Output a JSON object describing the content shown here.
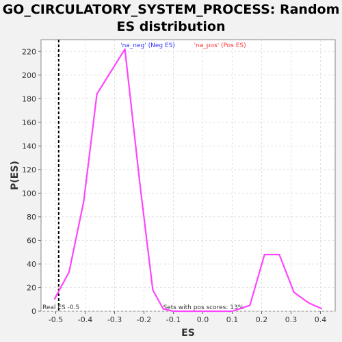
{
  "chart_data": {
    "type": "line",
    "title_lines": [
      "GO_CIRCULATORY_SYSTEM_PROCESS: Random",
      "ES distribution"
    ],
    "xlabel": "ES",
    "ylabel": "P(ES)",
    "xlim": [
      -0.55,
      0.45
    ],
    "ylim": [
      0,
      230
    ],
    "xticks": [
      -0.5,
      -0.4,
      -0.3,
      -0.2,
      -0.1,
      0.0,
      0.1,
      0.2,
      0.3,
      0.4
    ],
    "xtick_labels": [
      "-0.5",
      "-0.4",
      "-0.3",
      "-0.2",
      "-0.1",
      "0.0",
      "0.1",
      "0.2",
      "0.3",
      "0.4"
    ],
    "yticks": [
      0,
      20,
      40,
      60,
      80,
      100,
      120,
      140,
      160,
      180,
      200,
      220
    ],
    "ytick_labels": [
      "0",
      "20",
      "40",
      "60",
      "80",
      "100",
      "120",
      "140",
      "160",
      "180",
      "200",
      "220"
    ],
    "grid": true,
    "legend": [
      {
        "label": "'na_neg' (Neg ES)",
        "color": "#3333ff"
      },
      {
        "label": "'na_pos' (Pos ES)",
        "color": "#ff3333"
      }
    ],
    "legend_placement": "top-center",
    "series": [
      {
        "color": "#ff44ff",
        "x": [
          -0.505,
          -0.455,
          -0.405,
          -0.36,
          -0.265,
          -0.215,
          -0.17,
          -0.135,
          -0.1,
          -0.05,
          0.0,
          0.05,
          0.1,
          0.16,
          0.21,
          0.26,
          0.31,
          0.36,
          0.405
        ],
        "y": [
          10,
          33,
          93,
          184,
          222,
          110,
          18,
          2,
          0,
          0,
          0,
          0,
          0,
          5,
          48,
          48,
          16,
          7,
          2
        ]
      }
    ],
    "vline": {
      "x": -0.49,
      "label": "Real ES -0.5",
      "style": "dashed"
    },
    "annotation": "Sets with pos scores: 13%"
  }
}
